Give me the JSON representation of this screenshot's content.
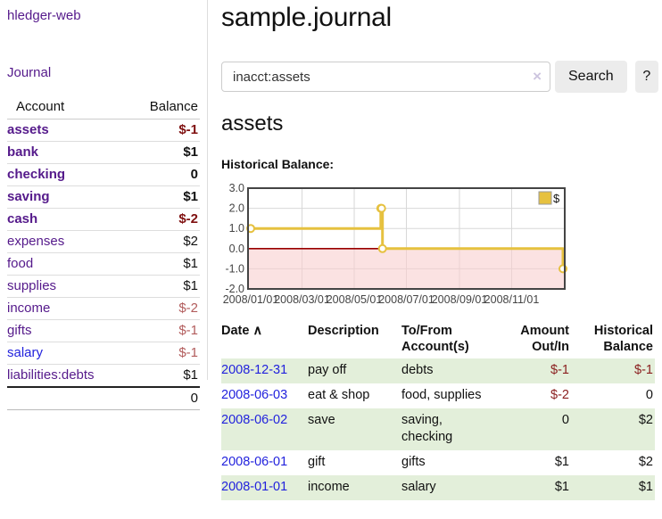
{
  "theme": {
    "purple_link": "#551a8b",
    "blue_link": "#2222dd",
    "neg_bold": "#7f1010",
    "neg_light": "#b25c5c",
    "neg_table": "#8b2020",
    "stripe_green": "#e3efda",
    "series_gold": "#e6c13f",
    "pink_region": "#f8cfcf",
    "zero_line": "#990000",
    "grid": "#d8d8d8",
    "plot_border": "#444444"
  },
  "sidebar": {
    "app_title": "hledger-web",
    "journal_link": "Journal",
    "table": {
      "headers": [
        "Account",
        "Balance"
      ],
      "rows": [
        {
          "name": "assets",
          "balance": "$-1",
          "depth": 1,
          "bold": true
        },
        {
          "name": "bank",
          "balance": "$1",
          "depth": 2,
          "bold": true
        },
        {
          "name": "checking",
          "balance": "0",
          "depth": 3,
          "bold": true
        },
        {
          "name": "saving",
          "balance": "$1",
          "depth": 3,
          "bold": true
        },
        {
          "name": "cash",
          "balance": "$-2",
          "depth": 2,
          "bold": true
        },
        {
          "name": "expenses",
          "balance": "$2",
          "depth": 1,
          "bold": false
        },
        {
          "name": "food",
          "balance": "$1",
          "depth": 2,
          "bold": false
        },
        {
          "name": "supplies",
          "balance": "$1",
          "depth": 2,
          "bold": false
        },
        {
          "name": "income",
          "balance": "$-2",
          "depth": 1,
          "bold": false
        },
        {
          "name": "gifts",
          "balance": "$-1",
          "depth": 2,
          "bold": false
        },
        {
          "name": "salary",
          "balance": "$-1",
          "depth": 2,
          "bold": false,
          "blue": true
        },
        {
          "name": "liabilities:debts",
          "balance": "$1",
          "depth": 1,
          "bold": false
        }
      ],
      "total": "0"
    }
  },
  "header": {
    "title": "sample.journal"
  },
  "search": {
    "value": "inacct:assets",
    "clear_icon": "×",
    "button_label": "Search",
    "help_label": "?"
  },
  "account_page": {
    "title": "assets",
    "chart_label": "Historical Balance:"
  },
  "chart_data": {
    "type": "line",
    "step": true,
    "title": "Historical Balance",
    "x_range": [
      "2008-01-01",
      "2008-12-31"
    ],
    "ylim": [
      -2,
      3
    ],
    "y_ticks": [
      "3.0",
      "2.0",
      "1.0",
      "0.0",
      "-1.0",
      "-2.0"
    ],
    "x_ticks": [
      "2008/01/01",
      "2008/03/01",
      "2008/05/01",
      "2008/07/01",
      "2008/09/01",
      "2008/11/01"
    ],
    "grid": true,
    "legend": {
      "label": "$",
      "position": "top-right"
    },
    "series": [
      {
        "name": "$",
        "points": [
          [
            "2008-01-01",
            1
          ],
          [
            "2008-06-01",
            2
          ],
          [
            "2008-06-02",
            2
          ],
          [
            "2008-06-03",
            0
          ],
          [
            "2008-12-31",
            -1
          ]
        ]
      }
    ]
  },
  "register": {
    "headers": {
      "date": "Date",
      "sort_icon": "∧",
      "description": "Description",
      "tofrom": "To/From Account(s)",
      "amount": "Amount Out/In",
      "balance": "Historical Balance"
    },
    "rows": [
      {
        "date": "2008-12-31",
        "description": "pay off",
        "tofrom": "debts",
        "amount": "$-1",
        "balance": "$-1"
      },
      {
        "date": "2008-06-03",
        "description": "eat & shop",
        "tofrom": "food, supplies",
        "amount": "$-2",
        "balance": "0"
      },
      {
        "date": "2008-06-02",
        "description": "save",
        "tofrom": "saving, checking",
        "amount": "0",
        "balance": "$2"
      },
      {
        "date": "2008-06-01",
        "description": "gift",
        "tofrom": "gifts",
        "amount": "$1",
        "balance": "$2"
      },
      {
        "date": "2008-01-01",
        "description": "income",
        "tofrom": "salary",
        "amount": "$1",
        "balance": "$1"
      }
    ]
  }
}
